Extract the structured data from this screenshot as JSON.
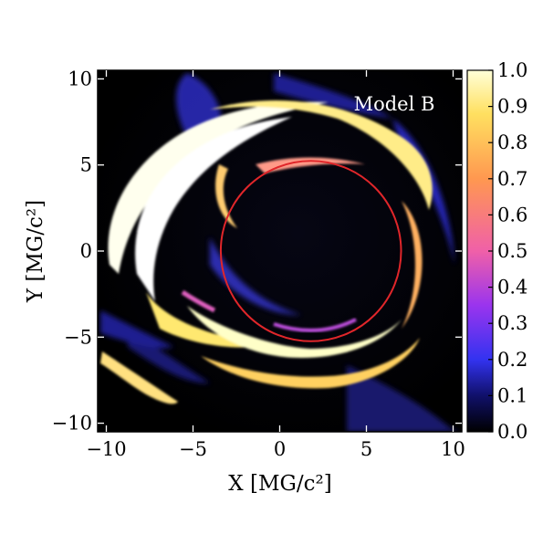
{
  "chart_data": {
    "type": "heatmap",
    "title": "",
    "annotation": "Model B",
    "xlabel": "X [MG/c²]",
    "ylabel": "Y [MG/c²]",
    "xlim": [
      -10.5,
      10.5
    ],
    "ylim": [
      -10.5,
      10.5
    ],
    "x_ticks": [
      -10,
      -5,
      0,
      5,
      10
    ],
    "y_ticks": [
      -10,
      -5,
      0,
      5,
      10
    ],
    "x_tick_labels": [
      "−10",
      "−5",
      "0",
      "5",
      "10"
    ],
    "y_tick_labels": [
      "−10",
      "−5",
      "0",
      "5",
      "10"
    ],
    "colorbar": {
      "range": [
        0.0,
        1.0
      ],
      "ticks": [
        0.0,
        0.1,
        0.2,
        0.3,
        0.4,
        0.5,
        0.6,
        0.7,
        0.8,
        0.9,
        1.0
      ],
      "tick_labels": [
        "0.0",
        "0.1",
        "0.2",
        "0.3",
        "0.4",
        "0.5",
        "0.6",
        "0.7",
        "0.8",
        "0.9",
        "1.0"
      ],
      "colormap": [
        "#000000",
        "#10106a",
        "#3333f0",
        "#9a34ee",
        "#f060a8",
        "#ff9850",
        "#ffe060",
        "#ffffd8"
      ]
    },
    "image_features": {
      "background_color": "#000000",
      "circle": {
        "center": [
          1.8,
          0.0
        ],
        "radius": 5.2,
        "color": "#e0262a"
      }
    },
    "grid": false
  }
}
